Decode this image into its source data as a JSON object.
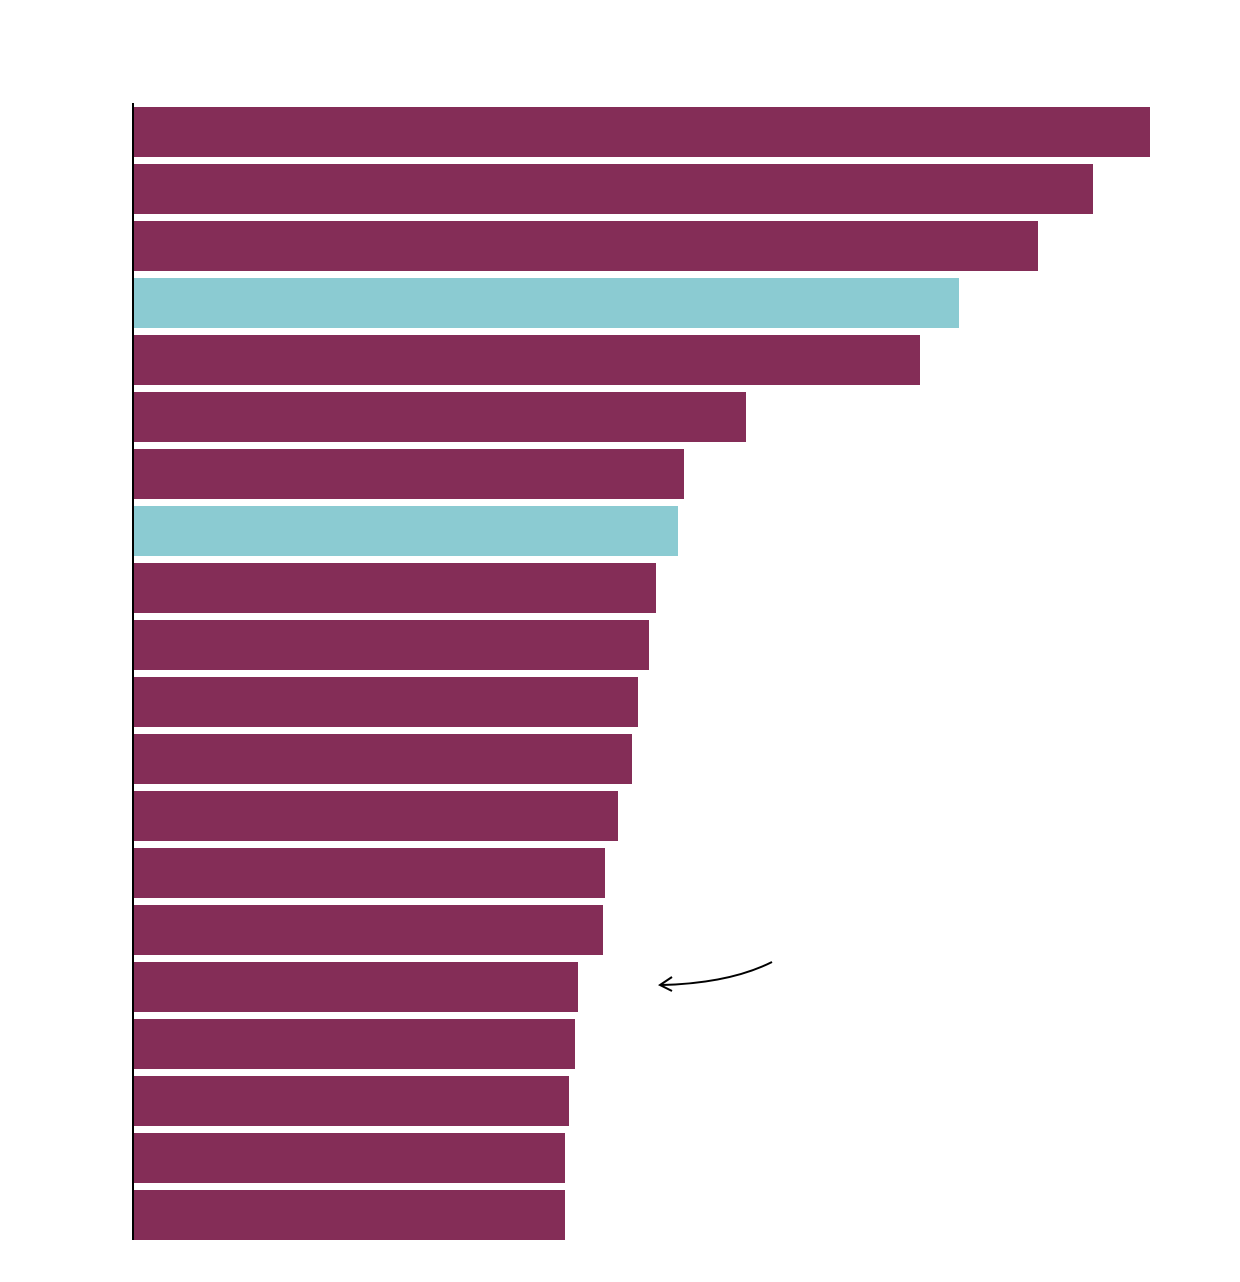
{
  "chart_data": {
    "type": "barh",
    "categories": [
      null,
      null,
      null,
      null,
      null,
      null,
      null,
      null,
      null,
      null,
      null,
      null,
      null,
      null,
      null,
      null,
      null,
      null,
      null,
      null
    ],
    "values": [
      1017,
      960,
      905,
      826,
      787,
      613,
      551,
      545,
      523,
      516,
      505,
      499,
      485,
      472,
      470,
      445,
      442,
      436,
      432,
      432
    ],
    "colors": [
      "#842d57",
      "#842d57",
      "#842d57",
      "#8bcbd2",
      "#842d57",
      "#842d57",
      "#842d57",
      "#8bcbd2",
      "#842d57",
      "#842d57",
      "#842d57",
      "#842d57",
      "#842d57",
      "#842d57",
      "#842d57",
      "#842d57",
      "#842d57",
      "#842d57",
      "#842d57",
      "#842d57"
    ],
    "xlim": [
      0,
      1017
    ]
  }
}
